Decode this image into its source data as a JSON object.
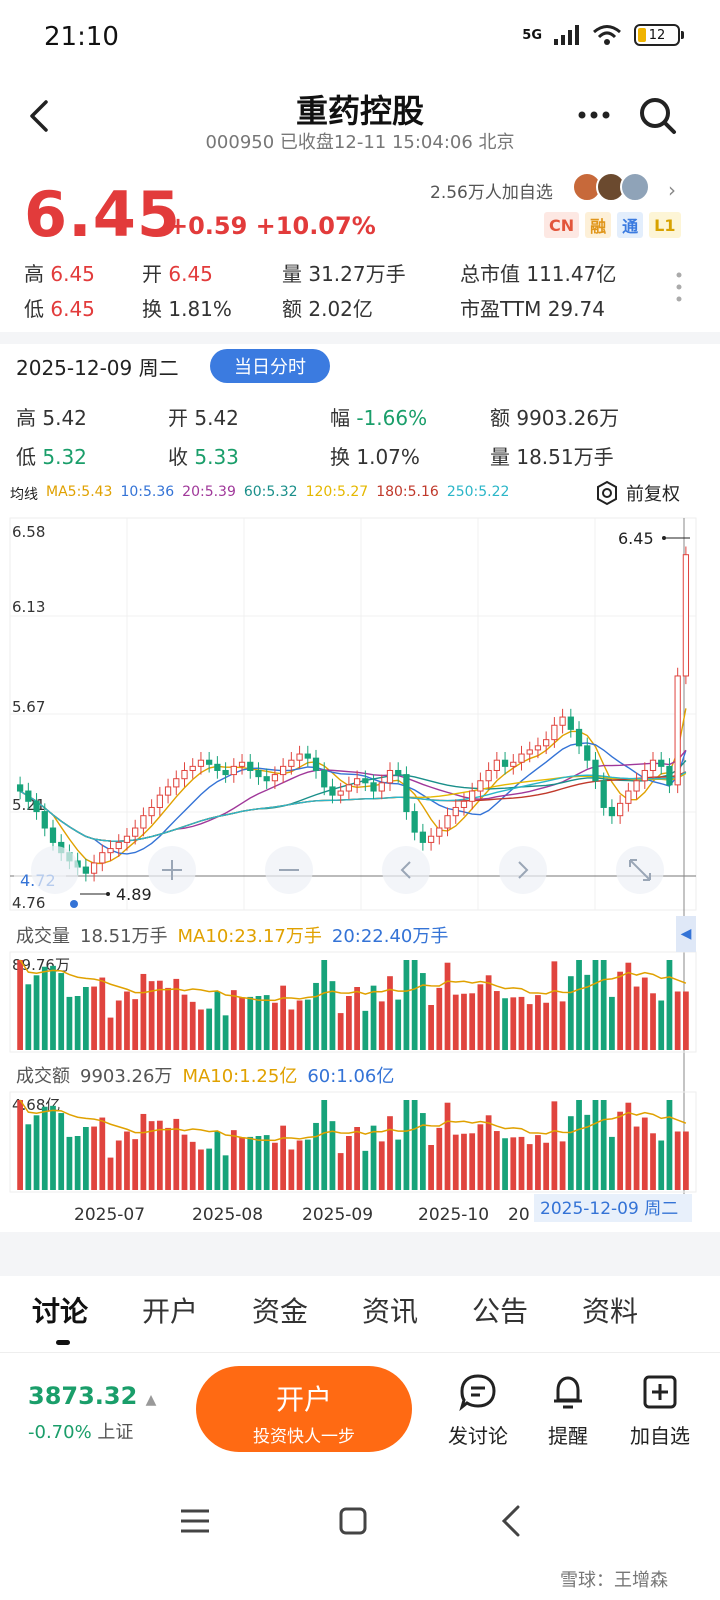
{
  "status": {
    "time": "21:10",
    "network": "5G",
    "battery": "12"
  },
  "header": {
    "title": "重药控股",
    "subtitle": "000950 已收盘12-11 15:04:06 北京"
  },
  "quote": {
    "price": "6.45",
    "change": "+0.59 +10.07%",
    "followers": "2.56万人加自选",
    "badges": [
      "CN",
      "融",
      "通",
      "L1"
    ],
    "stats": {
      "high_label": "高",
      "high": "6.45",
      "open_label": "开",
      "open": "6.45",
      "vol_label": "量",
      "vol": "31.27万手",
      "mcap_label": "总市值",
      "mcap": "111.47亿",
      "low_label": "低",
      "low": "6.45",
      "turn_label": "换",
      "turn": "1.81%",
      "amt_label": "额",
      "amt": "2.02亿",
      "pe_label": "市盈TTM",
      "pe": "29.74"
    }
  },
  "day_detail": {
    "date": "2025-12-09 周二",
    "button": "当日分时",
    "high_label": "高",
    "high": "5.42",
    "open_label": "开",
    "open": "5.42",
    "amp_label": "幅",
    "amp": "-1.66%",
    "amt_label": "额",
    "amt": "9903.26万",
    "low_label": "低",
    "low": "5.32",
    "close_label": "收",
    "close": "5.33",
    "turn_label": "换",
    "turn": "1.07%",
    "vol_label": "量",
    "vol": "18.51万手"
  },
  "ma_legend": {
    "label": "均线",
    "items": [
      {
        "text": "MA5:5.43",
        "color": "#e0a100"
      },
      {
        "text": "10:5.36",
        "color": "#3473d6"
      },
      {
        "text": "20:5.39",
        "color": "#a0389a"
      },
      {
        "text": "60:5.32",
        "color": "#1a8f8a"
      },
      {
        "text": "120:5.27",
        "color": "#e5b800"
      },
      {
        "text": "180:5.16",
        "color": "#c0392b"
      },
      {
        "text": "250:5.22",
        "color": "#2bb6c8"
      }
    ],
    "adjust": "前复权"
  },
  "chart_data": {
    "type": "candlestick",
    "y_ticks": [
      "6.58",
      "6.13",
      "5.67",
      "5.21",
      "4.76"
    ],
    "ylim": [
      4.76,
      6.58
    ],
    "max_label": "6.45",
    "min_label": "4.89",
    "crosshair_value": "4.72",
    "x_labels": [
      "2025-07",
      "2025-08",
      "2025-09",
      "2025-10",
      "20"
    ],
    "date_tag": "2025-12-09 周二",
    "closes": [
      5.3,
      5.25,
      5.2,
      5.12,
      5.05,
      5.0,
      4.96,
      4.93,
      4.9,
      4.95,
      5.0,
      5.02,
      5.05,
      5.08,
      5.12,
      5.18,
      5.22,
      5.28,
      5.32,
      5.36,
      5.4,
      5.42,
      5.45,
      5.43,
      5.4,
      5.38,
      5.42,
      5.44,
      5.4,
      5.37,
      5.35,
      5.38,
      5.42,
      5.45,
      5.48,
      5.46,
      5.4,
      5.32,
      5.28,
      5.3,
      5.33,
      5.36,
      5.34,
      5.3,
      5.34,
      5.4,
      5.38,
      5.2,
      5.1,
      5.05,
      5.08,
      5.12,
      5.18,
      5.22,
      5.25,
      5.3,
      5.35,
      5.4,
      5.45,
      5.42,
      5.44,
      5.48,
      5.5,
      5.52,
      5.55,
      5.62,
      5.66,
      5.6,
      5.52,
      5.45,
      5.35,
      5.22,
      5.18,
      5.24,
      5.3,
      5.35,
      5.4,
      5.45,
      5.42,
      5.33,
      5.86,
      6.45
    ]
  },
  "volume_panel": {
    "label": "成交量",
    "value": "18.51万手",
    "ma10": "MA10:23.17万手",
    "ma20": "20:22.40万手",
    "max": "89.76万"
  },
  "amount_panel": {
    "label": "成交额",
    "value": "9903.26万",
    "ma10": "MA10:1.25亿",
    "ma60": "60:1.06亿",
    "max": "4.68亿"
  },
  "tabs": [
    "讨论",
    "开户",
    "资金",
    "资讯",
    "公告",
    "资料"
  ],
  "bottom": {
    "index_value": "3873.32",
    "index_change": "-0.70%",
    "index_name": "上证",
    "open_title": "开户",
    "open_sub": "投资快人一步",
    "actions": [
      "发讨论",
      "提醒",
      "加自选"
    ]
  },
  "watermark": "雪球：王增森"
}
